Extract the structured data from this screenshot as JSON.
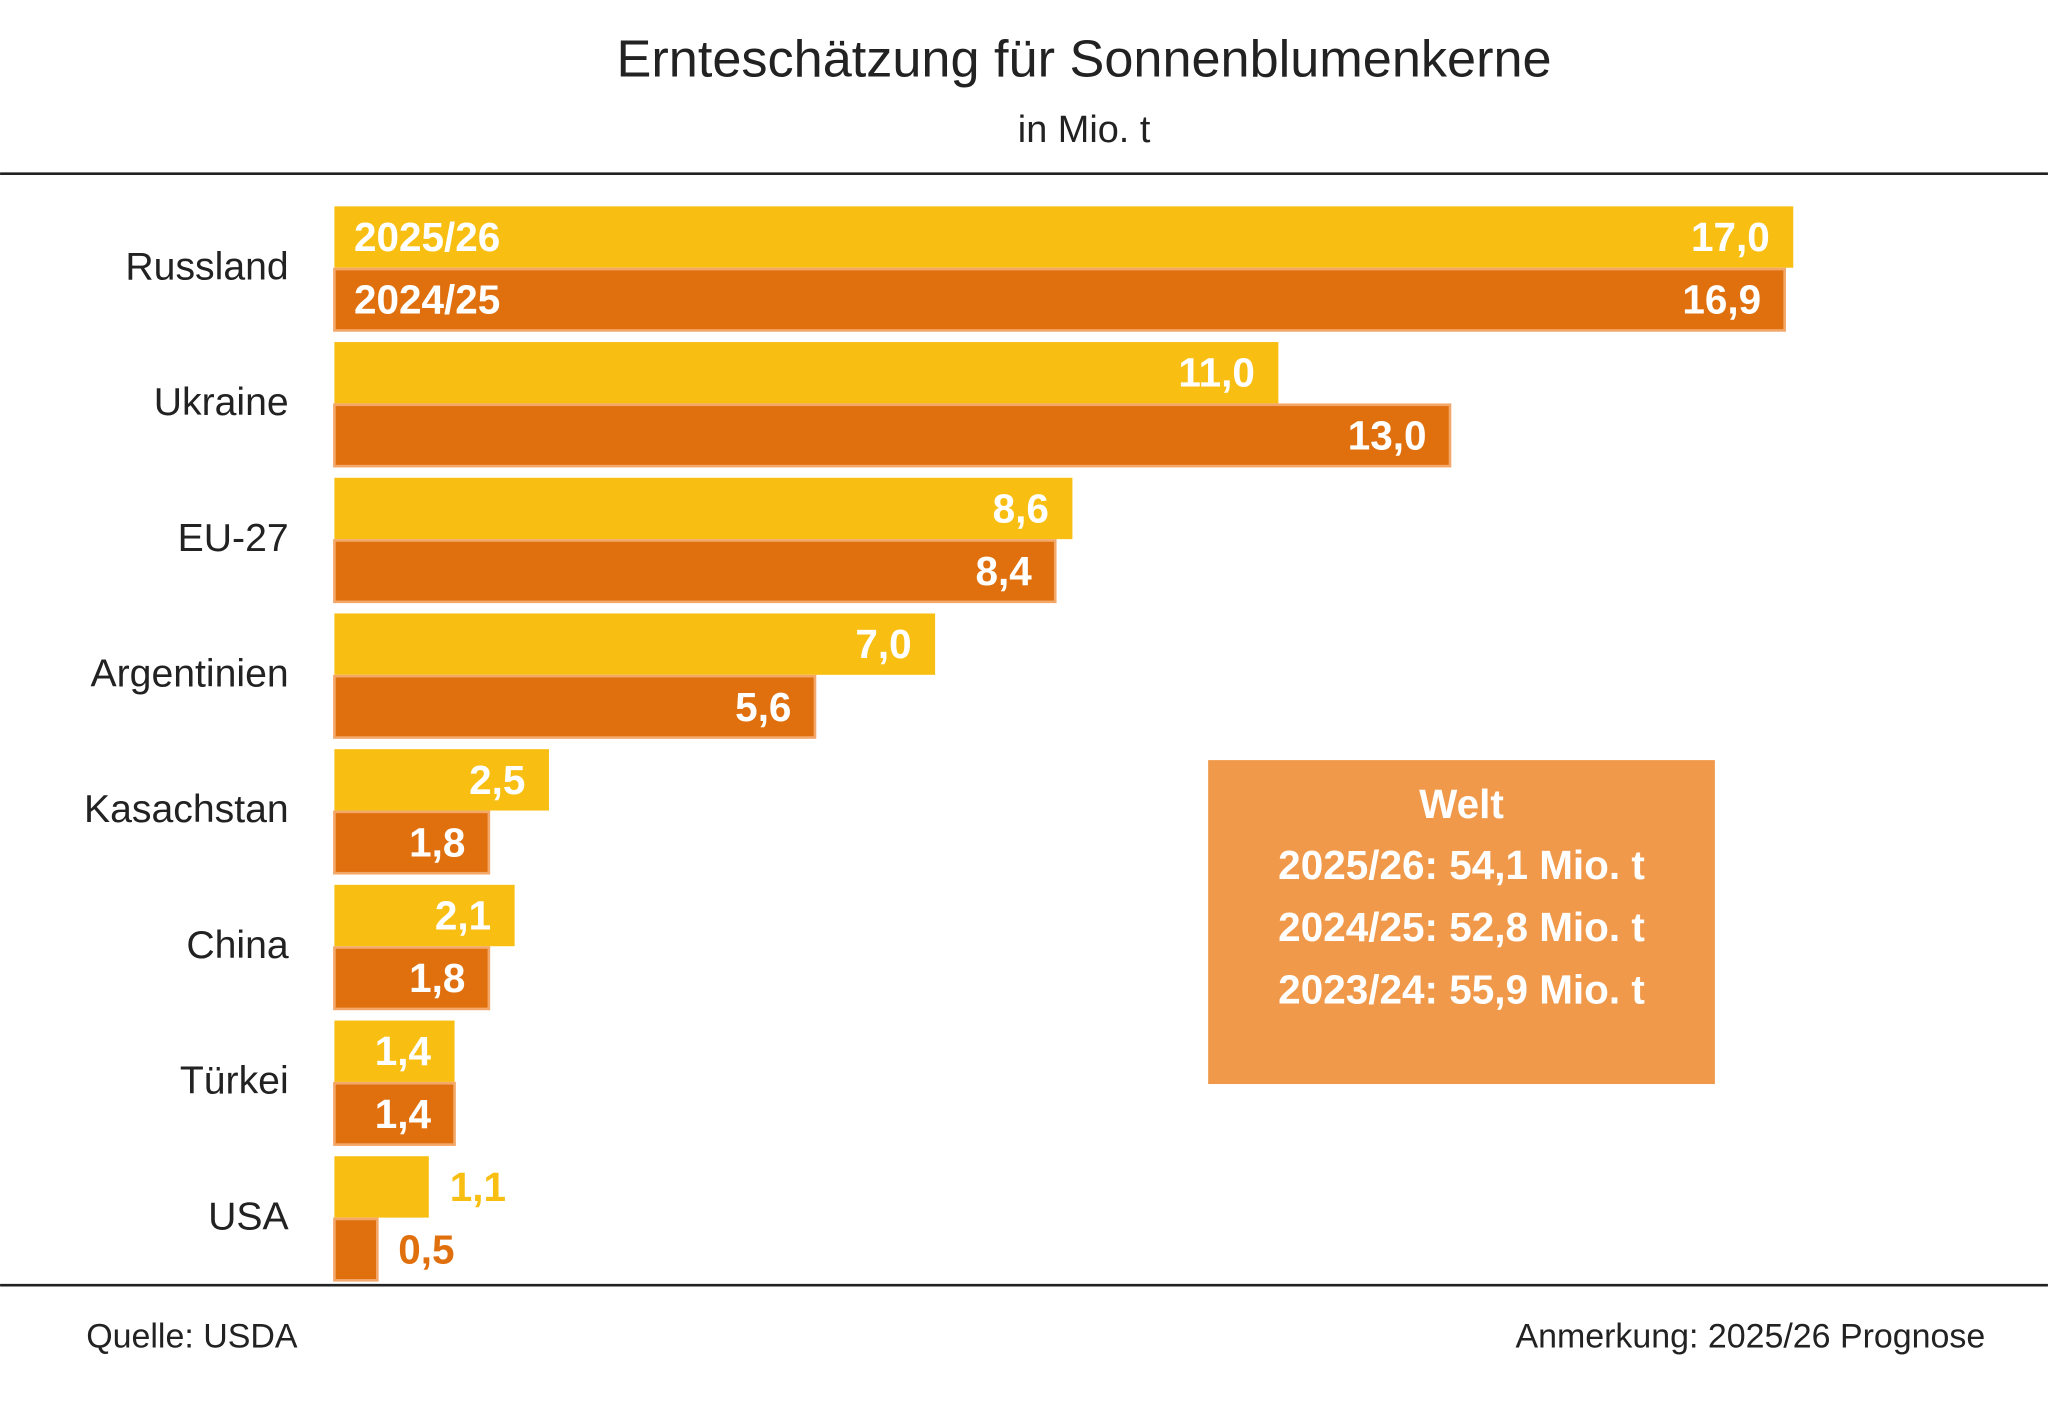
{
  "chart_data": {
    "type": "bar",
    "orientation": "horizontal",
    "title": "Ernteschätzung für Sonnenblumenkerne",
    "subtitle": "in Mio. t",
    "categories": [
      "Russland",
      "Ukraine",
      "EU-27",
      "Argentinien",
      "Kasachstan",
      "China",
      "Türkei",
      "USA"
    ],
    "series": [
      {
        "name": "2025/26",
        "color": "#f8bf12",
        "values": [
          17.0,
          11.0,
          8.6,
          7.0,
          2.5,
          2.1,
          1.4,
          1.1
        ],
        "value_labels": [
          "17,0",
          "11,0",
          "8,6",
          "7,0",
          "2,5",
          "2,1",
          "1,4",
          "1,1"
        ]
      },
      {
        "name": "2024/25",
        "color": "#e0700e",
        "values": [
          16.9,
          13.0,
          8.4,
          5.6,
          1.8,
          1.8,
          1.4,
          0.5
        ],
        "value_labels": [
          "16,9",
          "13,0",
          "8,4",
          "5,6",
          "1,8",
          "1,8",
          "1,4",
          "0,5"
        ]
      }
    ],
    "annotation": {
      "title": "Welt",
      "lines": [
        "2025/26: 54,1 Mio. t",
        "2024/25: 52,8 Mio. t",
        "2023/24: 55,9 Mio. t"
      ],
      "color": "#f0994a"
    },
    "source": "Quelle: USDA",
    "note": "Anmerkung: 2025/26 Prognose"
  }
}
